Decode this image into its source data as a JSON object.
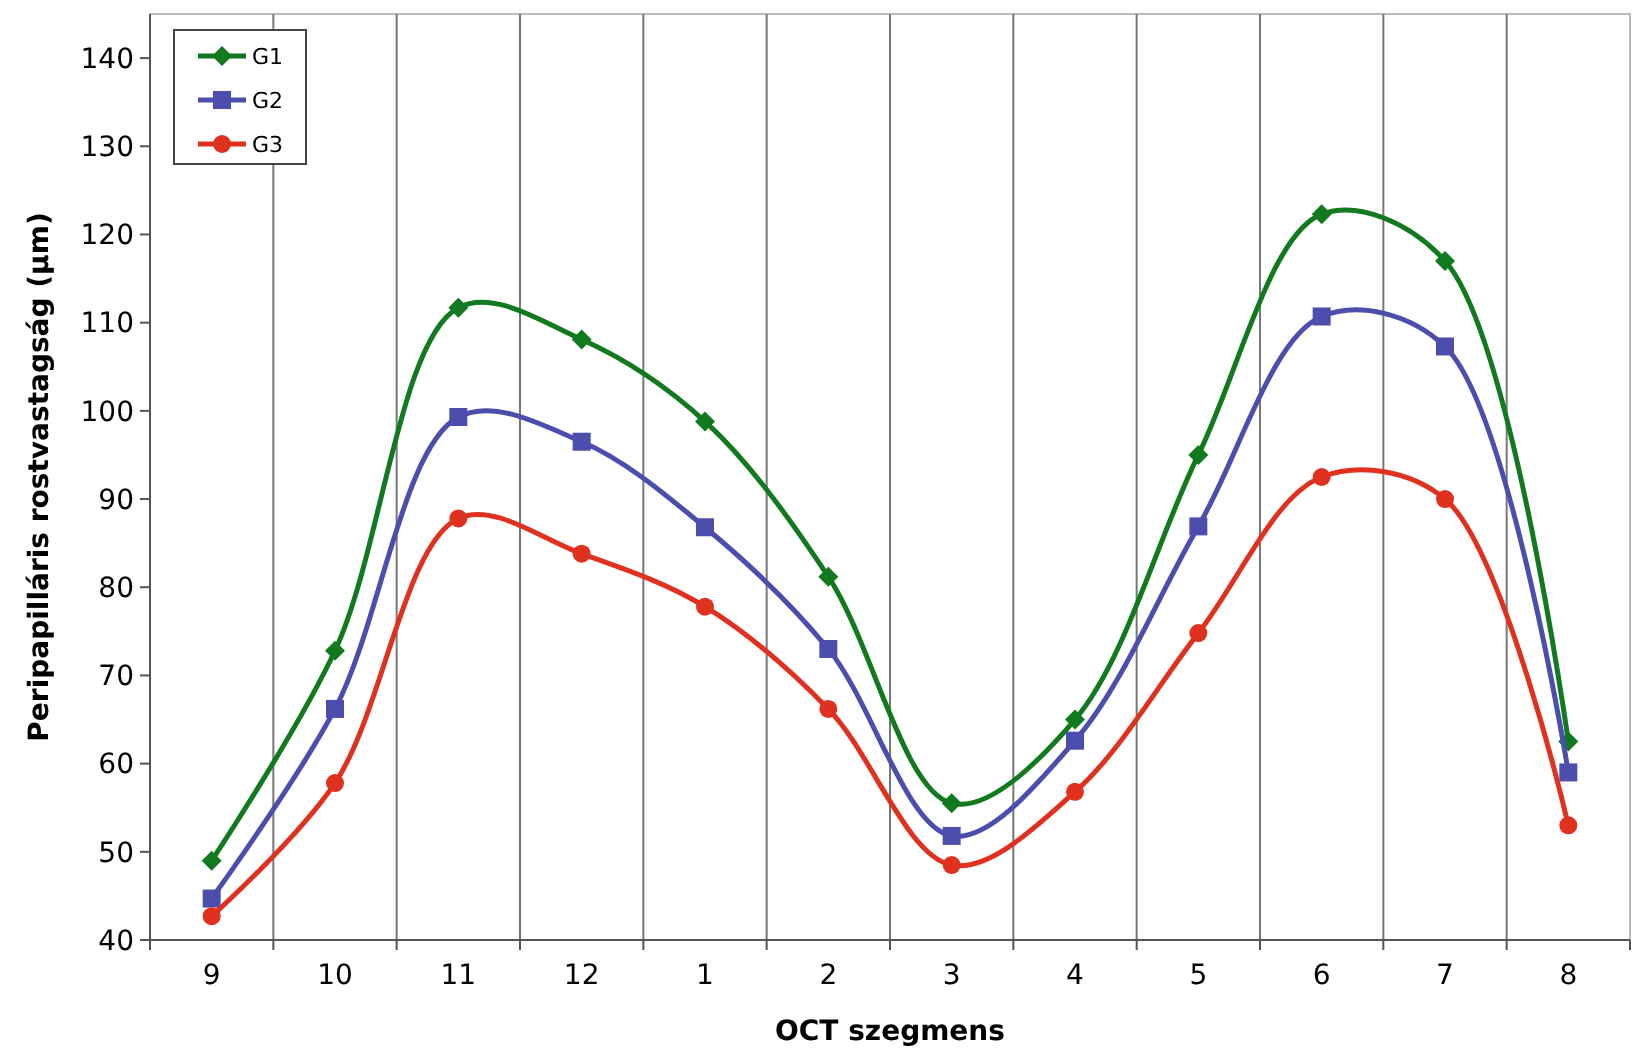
{
  "chart_data": {
    "type": "line",
    "xlabel": "OCT szegmens",
    "ylabel": "Peripapilláris rostvastagság (µm)",
    "categories": [
      "9",
      "10",
      "11",
      "12",
      "1",
      "2",
      "3",
      "4",
      "5",
      "6",
      "7",
      "8"
    ],
    "ylim": [
      40,
      145
    ],
    "yticks": [
      40,
      50,
      60,
      70,
      80,
      90,
      100,
      110,
      120,
      130,
      140
    ],
    "grid": "x",
    "legend": "top left",
    "line_style": "solid",
    "series": [
      {
        "name": "G1",
        "color": "#127a1e",
        "marker": "diamond",
        "values": [
          49,
          72.8,
          111.7,
          108.1,
          98.8,
          81.2,
          55.5,
          65,
          95,
          122.3,
          117,
          62.5
        ]
      },
      {
        "name": "G2",
        "color": "#4b4ead",
        "marker": "square",
        "values": [
          44.7,
          66.2,
          99.3,
          96.5,
          86.8,
          73,
          51.8,
          62.6,
          86.9,
          110.7,
          107.3,
          59
        ]
      },
      {
        "name": "G3",
        "color": "#e0301e",
        "marker": "circle",
        "values": [
          42.7,
          57.8,
          87.8,
          83.8,
          77.8,
          66.2,
          48.5,
          56.8,
          74.8,
          92.5,
          90,
          53
        ]
      }
    ]
  }
}
